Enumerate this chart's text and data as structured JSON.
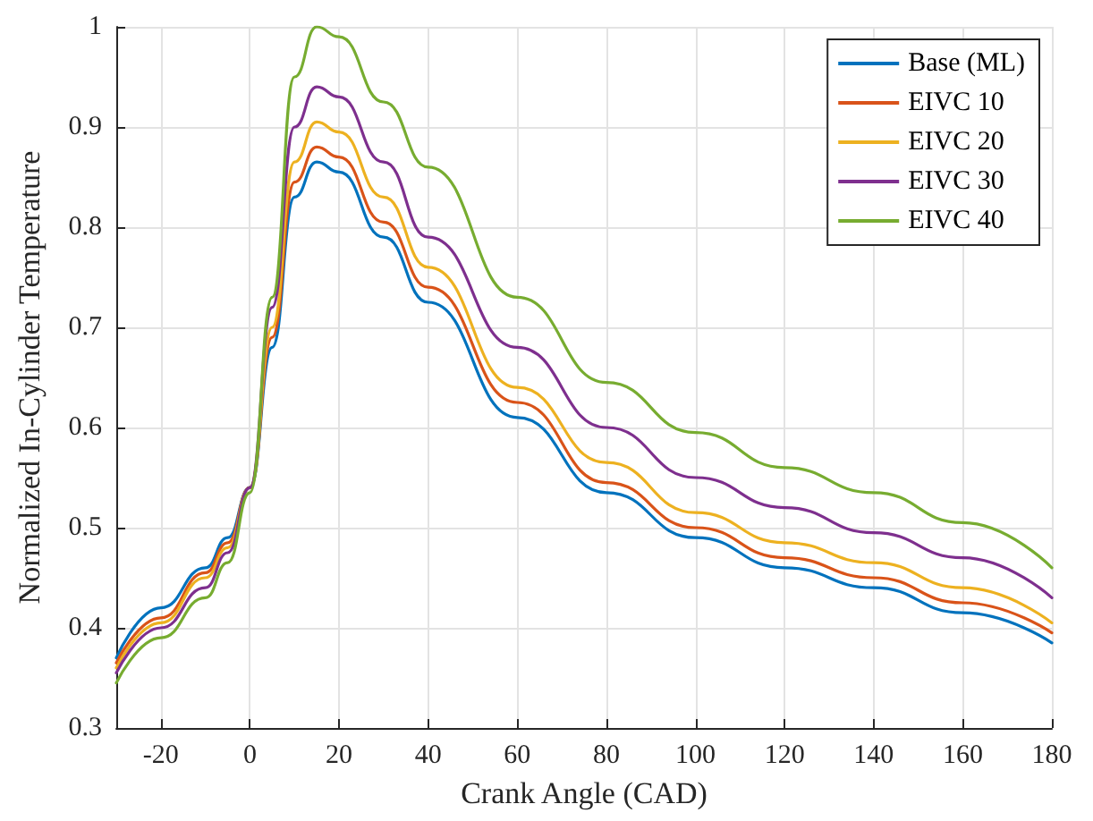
{
  "chart_data": {
    "type": "line",
    "xlabel": "Crank Angle (CAD)",
    "ylabel": "Normalized In-Cylinder Temperature",
    "x": [
      -30,
      -20,
      -10,
      -5,
      0,
      5,
      10,
      15,
      20,
      30,
      40,
      60,
      80,
      100,
      120,
      140,
      160,
      180
    ],
    "series": [
      {
        "name": "Base (ML)",
        "color": "#0072bd",
        "values": [
          0.37,
          0.42,
          0.46,
          0.49,
          0.54,
          0.68,
          0.83,
          0.865,
          0.855,
          0.79,
          0.725,
          0.61,
          0.535,
          0.49,
          0.46,
          0.44,
          0.415,
          0.385
        ]
      },
      {
        "name": "EIVC 10",
        "color": "#d95319",
        "values": [
          0.365,
          0.41,
          0.455,
          0.485,
          0.54,
          0.69,
          0.845,
          0.88,
          0.87,
          0.805,
          0.74,
          0.625,
          0.545,
          0.5,
          0.47,
          0.45,
          0.425,
          0.395
        ]
      },
      {
        "name": "EIVC 20",
        "color": "#edb120",
        "values": [
          0.36,
          0.405,
          0.45,
          0.48,
          0.54,
          0.7,
          0.865,
          0.905,
          0.895,
          0.83,
          0.76,
          0.64,
          0.565,
          0.515,
          0.485,
          0.465,
          0.44,
          0.405
        ]
      },
      {
        "name": "EIVC 30",
        "color": "#7e2f8e",
        "values": [
          0.355,
          0.4,
          0.44,
          0.475,
          0.54,
          0.72,
          0.9,
          0.94,
          0.93,
          0.865,
          0.79,
          0.68,
          0.6,
          0.55,
          0.52,
          0.495,
          0.47,
          0.43
        ]
      },
      {
        "name": "EIVC 40",
        "color": "#77ac30",
        "values": [
          0.345,
          0.39,
          0.43,
          0.465,
          0.535,
          0.73,
          0.95,
          1.0,
          0.99,
          0.925,
          0.86,
          0.73,
          0.645,
          0.595,
          0.56,
          0.535,
          0.505,
          0.46
        ]
      }
    ],
    "xlim": [
      -30,
      180
    ],
    "xticks": [
      -20,
      0,
      20,
      40,
      60,
      80,
      100,
      120,
      140,
      160,
      180
    ],
    "ylim": [
      0.3,
      1
    ],
    "yticks": [
      0.3,
      0.4,
      0.5,
      0.6,
      0.7,
      0.8,
      0.9,
      1
    ],
    "grid": true,
    "legend": "top right",
    "marker": "none",
    "line_style": "solid"
  }
}
